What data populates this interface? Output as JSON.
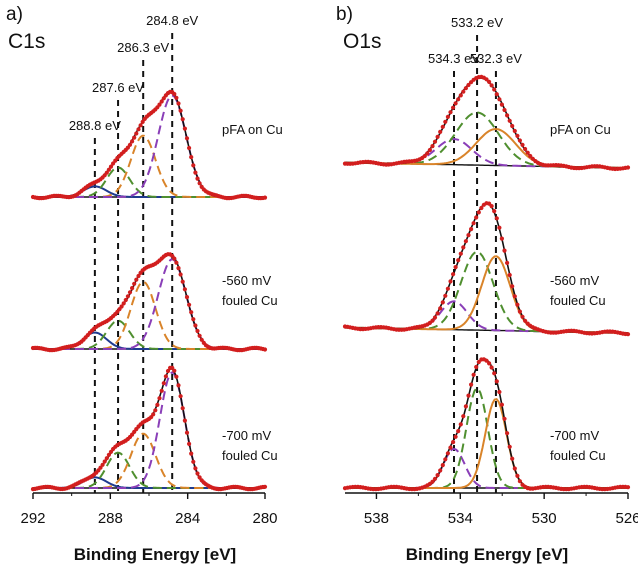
{
  "colors": {
    "data_points": "#d21e1e",
    "envelope": "#111111",
    "background_line": "#111111",
    "c1s_component_colors": [
      "#1f3b8f",
      "#4f8f2f",
      "#d9842a",
      "#8a3fb8"
    ],
    "o1s_component_colors": [
      "#8a3fb8",
      "#4f8f2f",
      "#d9842a"
    ]
  },
  "chart_data": [
    {
      "type": "line",
      "panel_label": "a)",
      "core_level": "C1s",
      "xlabel": "Binding Energy [eV]",
      "xlim": [
        292,
        280
      ],
      "x_reversed": true,
      "xticks": [
        292,
        288,
        284,
        280
      ],
      "grid": false,
      "peak_labels": [
        {
          "energy": 288.8,
          "text": "288.8 eV"
        },
        {
          "energy": 287.6,
          "text": "287.6 eV"
        },
        {
          "energy": 286.3,
          "text": "286.3 eV"
        },
        {
          "energy": 284.8,
          "text": "284.8 eV"
        }
      ],
      "traces": [
        {
          "label": "pFA on Cu",
          "background": [
            0.0,
            0.0
          ],
          "components": [
            {
              "center": 288.8,
              "fwhm": 1.4,
              "height": 0.09
            },
            {
              "center": 287.6,
              "fwhm": 1.4,
              "height": 0.25
            },
            {
              "center": 286.3,
              "fwhm": 1.5,
              "height": 0.52
            },
            {
              "center": 284.8,
              "fwhm": 1.7,
              "height": 0.86
            }
          ]
        },
        {
          "label": "-560 mV\nfouled Cu",
          "background": [
            0.0,
            0.0
          ],
          "components": [
            {
              "center": 288.8,
              "fwhm": 1.4,
              "height": 0.14
            },
            {
              "center": 287.6,
              "fwhm": 1.4,
              "height": 0.24
            },
            {
              "center": 286.3,
              "fwhm": 1.5,
              "height": 0.57
            },
            {
              "center": 284.8,
              "fwhm": 1.7,
              "height": 0.76
            }
          ]
        },
        {
          "label": "-700 mV\nfouled Cu",
          "background": [
            0.0,
            0.0
          ],
          "components": [
            {
              "center": 288.8,
              "fwhm": 1.4,
              "height": 0.09
            },
            {
              "center": 287.6,
              "fwhm": 1.4,
              "height": 0.3
            },
            {
              "center": 286.3,
              "fwhm": 1.5,
              "height": 0.46
            },
            {
              "center": 284.8,
              "fwhm": 1.5,
              "height": 0.98
            }
          ]
        }
      ]
    },
    {
      "type": "line",
      "panel_label": "b)",
      "core_level": "O1s",
      "xlabel": "Binding Energy [eV]",
      "xlim": [
        539.5,
        526
      ],
      "x_reversed": true,
      "xticks": [
        538,
        534,
        530,
        526
      ],
      "grid": false,
      "peak_labels": [
        {
          "energy": 534.3,
          "text": "534.3 eV"
        },
        {
          "energy": 533.2,
          "text": "533.2 eV"
        },
        {
          "energy": 532.3,
          "text": "532.3 eV"
        }
      ],
      "traces": [
        {
          "label": "pFA on Cu",
          "background": [
            0.04,
            0.0
          ],
          "components": [
            {
              "center": 534.3,
              "fwhm": 2.0,
              "height": 0.19
            },
            {
              "center": 533.2,
              "fwhm": 2.4,
              "height": 0.39
            },
            {
              "center": 532.3,
              "fwhm": 2.2,
              "height": 0.27
            }
          ]
        },
        {
          "label": "-560 mV\nfouled Cu",
          "background": [
            0.04,
            0.0
          ],
          "components": [
            {
              "center": 534.3,
              "fwhm": 1.5,
              "height": 0.21
            },
            {
              "center": 533.2,
              "fwhm": 1.8,
              "height": 0.58
            },
            {
              "center": 532.3,
              "fwhm": 1.6,
              "height": 0.55
            }
          ]
        },
        {
          "label": "-700 mV\nfouled Cu",
          "background": [
            0.0,
            0.0
          ],
          "components": [
            {
              "center": 534.3,
              "fwhm": 1.2,
              "height": 0.29
            },
            {
              "center": 533.2,
              "fwhm": 1.2,
              "height": 0.74
            },
            {
              "center": 532.3,
              "fwhm": 1.2,
              "height": 0.66
            }
          ]
        }
      ]
    }
  ]
}
